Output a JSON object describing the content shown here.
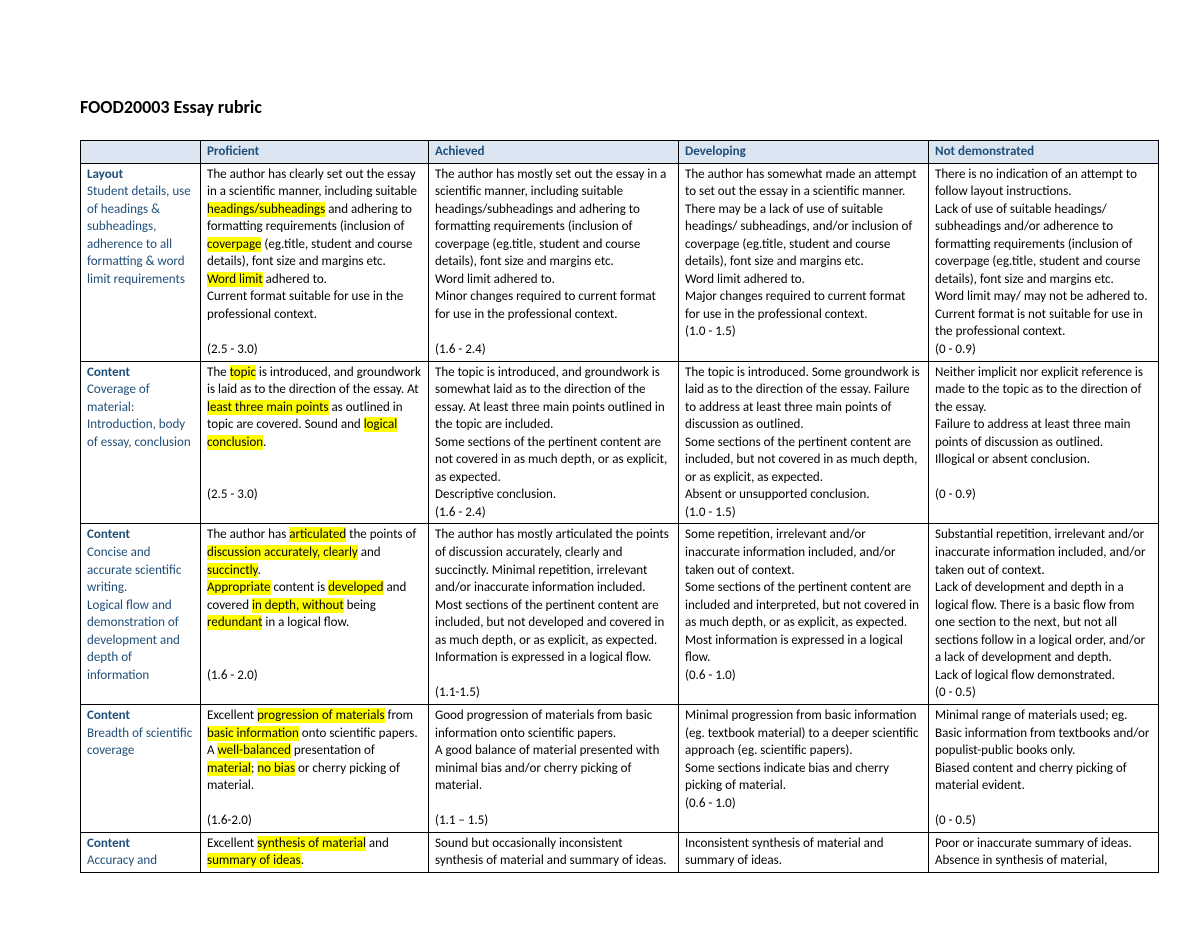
{
  "title": "FOOD20003 Essay rubric",
  "header": {
    "blank": "",
    "proficient": "Proficient",
    "achieved": "Achieved",
    "developing": "Developing",
    "not_demonstrated": "Not demonstrated"
  },
  "rows": {
    "layout": {
      "label_title": "Layout",
      "label_desc": "Student details, use of headings & subheadings, adherence to all formatting & word limit requirements",
      "proficient": {
        "p1a": "The author has clearly set out the essay in a scientific manner, including suitable ",
        "hl1": "headings/subheadings",
        "p1b": " and adhering to formatting requirements (inclusion of ",
        "hl2": "coverpage",
        "p1c": " (eg.title, student and course details), font size and margins etc.",
        "p2a": "",
        "hl3": "Word limit",
        "p2b": " adhered to.",
        "p3": "Current format suitable for use in the professional context.",
        "range": "(2.5 - 3.0)"
      },
      "achieved": {
        "p1": "The author has mostly set out the essay in a scientific manner, including suitable headings/subheadings and adhering to formatting requirements (inclusion of coverpage (eg.title, student and course details), font size and margins etc.",
        "p2": "Word limit adhered to.",
        "p3": "Minor changes required to current format for use in the professional context.",
        "range": "(1.6 - 2.4)"
      },
      "developing": {
        "p1": "The author has somewhat made an attempt to set out the essay in a scientific manner.",
        "p2": "There may be a lack of use of suitable headings/ subheadings, and/or inclusion of coverpage (eg.title, student and course details), font size and margins etc.",
        "p3": "Word limit adhered to.",
        "p4": "Major changes required to current format for use in the professional context.",
        "range": "(1.0 - 1.5)"
      },
      "not": {
        "p1": "There is no indication of an attempt to follow layout instructions.",
        "p2": "Lack of use of suitable headings/ subheadings and/or adherence to formatting requirements (inclusion of coverpage (eg.title, student and course details), font size and margins etc.",
        "p3": "Word limit may/ may not be adhered to.",
        "p4": "Current format is not suitable for use in the professional context.",
        "range": "(0 - 0.9)"
      }
    },
    "content1": {
      "label_title": "Content",
      "label_desc": "Coverage of material: Introduction, body of essay, conclusion",
      "proficient": {
        "p1a": "The ",
        "hl1": "topic",
        "p1b": " is introduced, and groundwork is laid as to the direction of the essay. At ",
        "hl2": "least three main points",
        "p1c": " as outlined in topic are covered. Sound and ",
        "hl3": "logical conclusion",
        "p1d": ".",
        "range": "(2.5 - 3.0)"
      },
      "achieved": {
        "p1": "The topic is introduced, and groundwork is somewhat laid as to the direction of the essay. At least three main points outlined in the topic are included.",
        "p2": "Some sections of the pertinent content are not covered in as much depth, or as explicit, as expected.",
        "p3": "Descriptive conclusion.",
        "range": "(1.6 - 2.4)"
      },
      "developing": {
        "p1": "The topic is introduced. Some groundwork is laid as to the direction of the essay. Failure to address at least three main points of discussion as outlined.",
        "p2": "Some sections of the pertinent content are included, but not covered in as much depth, or as explicit, as expected.",
        "p3": "Absent or unsupported conclusion.",
        "range": "(1.0 - 1.5)"
      },
      "not": {
        "p1": "Neither implicit nor explicit reference is made to the topic as to the direction of the essay.",
        "p2": "Failure to address at least three main points of discussion as outlined.",
        "p3": "Illogical or absent conclusion.",
        "range": "(0 - 0.9)"
      }
    },
    "content2": {
      "label_title": "Content",
      "label_desc": "Concise and accurate scientific writing.\nLogical flow and demonstration of development and depth of information",
      "proficient": {
        "p1a": "The author has ",
        "hl1": "articulated",
        "p1b": " the points of ",
        "hl2": "discussion accurately, clearly",
        "p1c": " and ",
        "hl3": "succinctly",
        "p1d": ".",
        "p2a": "",
        "hl4": "Appropriate",
        "p2b": " content is ",
        "hl5": "developed",
        "p2c": " and covered ",
        "hl6": "in depth, without",
        "p2d": " being ",
        "hl7": "redundant",
        "p2e": " in a logical flow.",
        "range": "(1.6 - 2.0)"
      },
      "achieved": {
        "p1": "The author has mostly articulated the points of discussion accurately, clearly and succinctly. Minimal repetition, irrelevant and/or inaccurate information included.",
        "p2": "Most sections of the pertinent content are included, but not developed and covered in as much depth, or as explicit, as expected. Information is expressed in a logical flow.",
        "range": "(1.1-1.5)"
      },
      "developing": {
        "p1": "Some repetition, irrelevant and/or inaccurate information included, and/or taken out of context.",
        "p2": "Some sections of the pertinent content are included and interpreted, but not covered in as much depth, or as explicit, as expected.",
        "p3": "Most information is expressed in a logical flow.",
        "range": "(0.6 - 1.0)"
      },
      "not": {
        "p1": "Substantial repetition, irrelevant and/or inaccurate information included, and/or taken out of context.",
        "p2": "Lack of development and depth in a logical flow. There is a basic flow from one section to the next, but not all sections follow in a logical order, and/or a lack of development and depth.",
        "p3": "Lack of logical flow demonstrated.",
        "range": "(0 - 0.5)"
      }
    },
    "content3": {
      "label_title": "Content",
      "label_desc": "Breadth of scientific coverage",
      "proficient": {
        "p1a": "Excellent ",
        "hl1": "progression of materials",
        "p1b": " from ",
        "hl2": "basic information",
        "p1c": " onto scientific papers.",
        "p2a": "A ",
        "hl3": "well-balanced",
        "p2b": " presentation of ",
        "hl4": "material",
        "p2c": "; ",
        "hl5": "no bias",
        "p2d": " or cherry picking of material.",
        "range": "(1.6-2.0)"
      },
      "achieved": {
        "p1": "Good progression of materials from basic information onto scientific papers.",
        "p2": "A good balance of material presented with minimal bias and/or cherry picking of material.",
        "range": "(1.1 – 1.5)"
      },
      "developing": {
        "p1": "Minimal progression from basic information (eg. textbook material) to a deeper scientific approach (eg. scientific papers).",
        "p2": "Some sections indicate bias and cherry picking of material.",
        "range": "(0.6 - 1.0)"
      },
      "not": {
        "p1": "Minimal range of materials used; eg. Basic information from textbooks and/or populist-public books only.",
        "p2": "Biased content and cherry picking of material evident.",
        "range": "(0 - 0.5)"
      }
    },
    "content4": {
      "label_title": "Content",
      "label_desc": "Accuracy and",
      "proficient": {
        "p1a": "Excellent ",
        "hl1": "synthesis of material",
        "p1b": " and ",
        "hl2": "summary of ideas",
        "p1c": "."
      },
      "achieved": {
        "p1": "Sound but occasionally inconsistent synthesis of material and summary of ideas."
      },
      "developing": {
        "p1": "Inconsistent synthesis of material and summary of ideas."
      },
      "not": {
        "p1": "Poor or inaccurate summary of ideas. Absence in synthesis of material,"
      }
    }
  },
  "colors": {
    "header_bg": "#dce5f2",
    "header_text": "#1f4e79",
    "highlight": "#ffff00",
    "border": "#000000",
    "body_text": "#000000",
    "background": "#ffffff"
  }
}
